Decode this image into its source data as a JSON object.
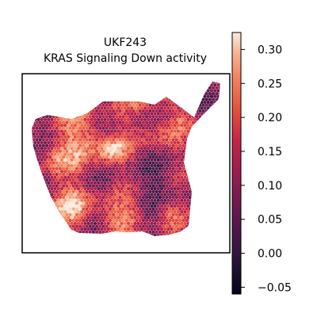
{
  "chart_data": {
    "type": "heatmap",
    "title_lines": [
      "UKF243",
      "KRAS Signaling Down activity"
    ],
    "colormap": "rocket",
    "colorbar": {
      "range": [
        -0.06,
        0.325
      ],
      "ticks": [
        -0.05,
        0.0,
        0.05,
        0.1,
        0.15,
        0.2,
        0.25,
        0.3
      ],
      "tick_labels": [
        "−0.05",
        "0.00",
        "0.05",
        "0.10",
        "0.15",
        "0.20",
        "0.25",
        "0.30"
      ]
    },
    "grid": false,
    "axes_ticks_shown": false
  }
}
